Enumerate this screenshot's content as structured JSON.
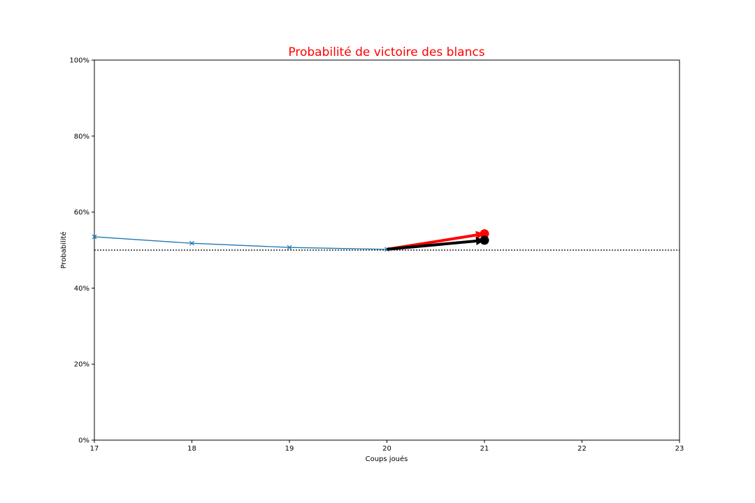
{
  "chart_data": {
    "type": "line",
    "title": "Probabilité de victoire des blancs",
    "xlabel": "Coups joués",
    "ylabel": "Probabilité",
    "xlim": [
      17,
      23
    ],
    "ylim": [
      0,
      1
    ],
    "x_ticks": [
      "17",
      "18",
      "19",
      "20",
      "21",
      "22",
      "23"
    ],
    "x_tick_values": [
      17,
      18,
      19,
      20,
      21,
      22,
      23
    ],
    "y_ticks": [
      "0%",
      "20%",
      "40%",
      "60%",
      "80%",
      "100%"
    ],
    "y_tick_values": [
      0,
      0.2,
      0.4,
      0.6,
      0.8,
      1.0
    ],
    "grid": false,
    "reference_line": {
      "y": 0.5,
      "style": "dotted",
      "color": "#000000"
    },
    "series": [
      {
        "x": [
          17,
          18,
          19,
          20
        ],
        "y": [
          0.535,
          0.518,
          0.507,
          0.502
        ],
        "marker": "x",
        "color": "#1f77b4"
      }
    ],
    "arrows": [
      {
        "from": [
          20,
          0.502
        ],
        "to": [
          21,
          0.543
        ],
        "color": "#ff0000",
        "end_marker": "circle"
      },
      {
        "from": [
          20,
          0.502
        ],
        "to": [
          21,
          0.526
        ],
        "color": "#000000",
        "end_marker": "circle"
      }
    ],
    "colors": {
      "title": "#ff0000",
      "series": "#1f77b4",
      "arrow_red": "#ff0000",
      "arrow_black": "#000000"
    }
  }
}
